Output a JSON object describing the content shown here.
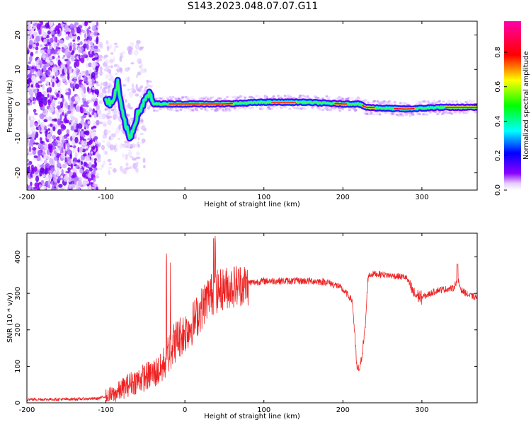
{
  "title": "S143.2023.048.07.07.G11",
  "colors": {
    "signal": "#ee2222",
    "axis": "#000000"
  },
  "chart_data": [
    {
      "type": "heatmap",
      "xlabel": "Height of straight line (km)",
      "ylabel": "Frequency (Hz)",
      "xlim": [
        -200,
        370
      ],
      "ylim": [
        -25,
        24
      ],
      "xticks": [
        -200,
        -100,
        0,
        100,
        200,
        300
      ],
      "yticks": [
        -20,
        -10,
        0,
        10,
        20
      ],
      "colorbar": {
        "label": "Normalized spectral amplitude",
        "range": [
          0,
          1
        ],
        "ticks": [
          "0.0",
          "0.2",
          "0.4",
          "0.6",
          "0.8"
        ],
        "colormap": "rainbow (purple-blue-cyan-green-yellow-red-magenta)"
      },
      "ridge": [
        {
          "x": -100,
          "f": 1
        },
        {
          "x": -92,
          "f": 0
        },
        {
          "x": -85,
          "f": 6
        },
        {
          "x": -80,
          "f": -2
        },
        {
          "x": -75,
          "f": -6
        },
        {
          "x": -70,
          "f": -10
        },
        {
          "x": -65,
          "f": -7
        },
        {
          "x": -60,
          "f": -3
        },
        {
          "x": -55,
          "f": -1
        },
        {
          "x": -48,
          "f": 2
        },
        {
          "x": -45,
          "f": 3
        },
        {
          "x": -40,
          "f": 0
        },
        {
          "x": -30,
          "f": 0
        },
        {
          "x": 0,
          "f": 0
        },
        {
          "x": 50,
          "f": 0
        },
        {
          "x": 100,
          "f": 0.5
        },
        {
          "x": 150,
          "f": 0.5
        },
        {
          "x": 200,
          "f": 0
        },
        {
          "x": 220,
          "f": 0
        },
        {
          "x": 230,
          "f": -1
        },
        {
          "x": 280,
          "f": -1.5
        },
        {
          "x": 320,
          "f": -1
        },
        {
          "x": 370,
          "f": -1
        }
      ]
    },
    {
      "type": "line",
      "xlabel": "Height of straight line (km)",
      "ylabel": "SNR (10 * v/v)",
      "xlim": [
        -200,
        370
      ],
      "ylim": [
        0,
        465
      ],
      "xticks": [
        -200,
        -100,
        0,
        100,
        200,
        300
      ],
      "yticks": [
        0,
        100,
        200,
        300,
        400
      ],
      "series": [
        {
          "x": [
            -200,
            -150,
            -110,
            -90,
            -70,
            -50,
            -30,
            -20,
            -10,
            0,
            10,
            20,
            30,
            40,
            50,
            60,
            70,
            80,
            90,
            100,
            120,
            140,
            160,
            180,
            195,
            205,
            212,
            218,
            222,
            228,
            232,
            240,
            260,
            280,
            290,
            300,
            320,
            340,
            345,
            350,
            360,
            370
          ],
          "y": [
            10,
            10,
            12,
            25,
            55,
            75,
            95,
            150,
            180,
            200,
            225,
            260,
            300,
            310,
            320,
            325,
            330,
            330,
            332,
            335,
            335,
            335,
            335,
            332,
            320,
            300,
            280,
            90,
            100,
            200,
            350,
            355,
            350,
            345,
            300,
            290,
            310,
            315,
            340,
            310,
            295,
            290
          ]
        }
      ]
    }
  ]
}
